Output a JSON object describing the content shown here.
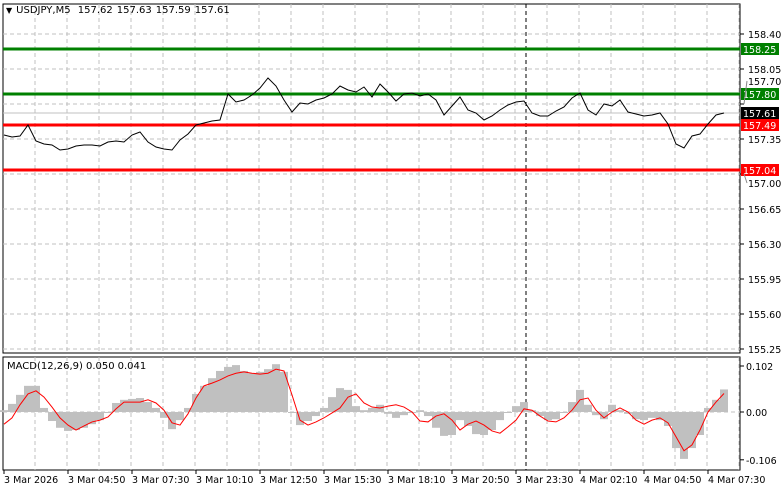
{
  "header": {
    "symbol": "USDJPY,M5",
    "open": "157.62",
    "high": "157.63",
    "low": "157.59",
    "close": "157.61"
  },
  "macd_label": {
    "name": "MACD(12,26,9)",
    "main": "0.050",
    "signal": "0.041"
  },
  "colors": {
    "support": "#ff0000",
    "resistance": "#008000",
    "price_line": "#000000",
    "macd_histogram": "#c0c0c0",
    "signal_line": "#ff0000",
    "grid": "#c0c0c0",
    "current_price_badge": "#000000"
  },
  "chart_data": [
    {
      "type": "line",
      "title": "USDJPY,M5",
      "ylim": [
        155.2,
        158.7
      ],
      "y_ticks": [
        "158.40",
        "158.05",
        "157.70",
        "157.35",
        "157.00",
        "156.65",
        "156.30",
        "155.95",
        "155.60",
        "155.25"
      ],
      "x_ticks": [
        "3 Mar 2026",
        "3 Mar 04:50",
        "3 Mar 07:30",
        "3 Mar 10:10",
        "3 Mar 12:50",
        "3 Mar 15:30",
        "3 Mar 18:10",
        "3 Mar 20:50",
        "3 Mar 23:30",
        "4 Mar 02:10",
        "4 Mar 04:50",
        "4 Mar 07:30"
      ],
      "grid": true,
      "times": [
        "3 Mar 02:10",
        "3 Mar 02:30",
        "3 Mar 02:50",
        "3 Mar 03:10",
        "3 Mar 03:30",
        "3 Mar 03:50",
        "3 Mar 04:10",
        "3 Mar 04:30",
        "3 Mar 04:50",
        "3 Mar 05:10",
        "3 Mar 05:30",
        "3 Mar 05:50",
        "3 Mar 06:10",
        "3 Mar 06:30",
        "3 Mar 06:50",
        "3 Mar 07:10",
        "3 Mar 07:30",
        "3 Mar 07:50",
        "3 Mar 08:10",
        "3 Mar 08:30",
        "3 Mar 08:50",
        "3 Mar 09:10",
        "3 Mar 09:30",
        "3 Mar 09:50",
        "3 Mar 10:10",
        "3 Mar 10:30",
        "3 Mar 10:50",
        "3 Mar 11:10",
        "3 Mar 11:30",
        "3 Mar 11:50",
        "3 Mar 12:10",
        "3 Mar 12:30",
        "3 Mar 12:50",
        "3 Mar 13:10",
        "3 Mar 13:30",
        "3 Mar 13:50",
        "3 Mar 14:10",
        "3 Mar 14:30",
        "3 Mar 14:50",
        "3 Mar 15:10",
        "3 Mar 15:30",
        "3 Mar 15:50",
        "3 Mar 16:10",
        "3 Mar 16:30",
        "3 Mar 16:50",
        "3 Mar 17:10",
        "3 Mar 17:30",
        "3 Mar 17:50",
        "3 Mar 18:10",
        "3 Mar 18:30",
        "3 Mar 18:50",
        "3 Mar 19:10",
        "3 Mar 19:30",
        "3 Mar 19:50",
        "3 Mar 20:10",
        "3 Mar 20:30",
        "3 Mar 20:50",
        "3 Mar 21:10",
        "3 Mar 21:30",
        "3 Mar 21:50",
        "3 Mar 22:10",
        "3 Mar 22:30",
        "3 Mar 22:50",
        "3 Mar 23:10",
        "3 Mar 23:30",
        "3 Mar 23:50",
        "4 Mar 00:10",
        "4 Mar 00:30",
        "4 Mar 00:50",
        "4 Mar 01:10",
        "4 Mar 01:30",
        "4 Mar 01:50",
        "4 Mar 02:10",
        "4 Mar 02:30",
        "4 Mar 02:50",
        "4 Mar 03:10",
        "4 Mar 03:30",
        "4 Mar 03:50",
        "4 Mar 04:10",
        "4 Mar 04:30",
        "4 Mar 04:50",
        "4 Mar 05:10",
        "4 Mar 05:30",
        "4 Mar 05:50",
        "4 Mar 06:10",
        "4 Mar 06:30",
        "4 Mar 06:50",
        "4 Mar 07:10",
        "4 Mar 07:30",
        "4 Mar 07:50",
        "4 Mar 08:10"
      ],
      "close": [
        157.39,
        157.37,
        157.38,
        157.49,
        157.33,
        157.3,
        157.29,
        157.24,
        157.25,
        157.28,
        157.29,
        157.29,
        157.28,
        157.32,
        157.33,
        157.32,
        157.39,
        157.42,
        157.32,
        157.27,
        157.25,
        157.24,
        157.34,
        157.4,
        157.49,
        157.51,
        157.53,
        157.54,
        157.8,
        157.72,
        157.74,
        157.79,
        157.86,
        157.96,
        157.88,
        157.74,
        157.62,
        157.71,
        157.7,
        157.74,
        157.76,
        157.8,
        157.88,
        157.84,
        157.82,
        157.87,
        157.77,
        157.9,
        157.82,
        157.73,
        157.8,
        157.81,
        157.78,
        157.8,
        157.74,
        157.59,
        157.68,
        157.77,
        157.64,
        157.61,
        157.54,
        157.58,
        157.64,
        157.69,
        157.72,
        157.73,
        157.61,
        157.58,
        157.58,
        157.63,
        157.67,
        157.76,
        157.81,
        157.64,
        157.59,
        157.7,
        157.68,
        157.74,
        157.62,
        157.6,
        157.58,
        157.59,
        157.61,
        157.5,
        157.3,
        157.26,
        157.38,
        157.4,
        157.5,
        157.59,
        157.61
      ],
      "current_price": "157.61",
      "day_separator": "3 Mar 23:50",
      "levels": [
        {
          "price": "158.25",
          "kind": "resistance"
        },
        {
          "price": "157.80",
          "kind": "resistance"
        },
        {
          "price": "157.49",
          "kind": "support"
        },
        {
          "price": "157.04",
          "kind": "support"
        }
      ]
    },
    {
      "type": "bar",
      "title": "MACD(12,26,9)",
      "ylim": [
        -0.12,
        0.122
      ],
      "y_ticks": [
        "0.102",
        "0.00",
        "-0.106"
      ],
      "histogram": [
        0.004,
        0.018,
        0.038,
        0.058,
        0.058,
        0.009,
        -0.02,
        -0.035,
        -0.042,
        -0.04,
        -0.035,
        -0.027,
        -0.018,
        0,
        0.02,
        0.027,
        0.029,
        0.031,
        0.022,
        0.009,
        -0.013,
        -0.038,
        -0.018,
        0.009,
        0.04,
        0.058,
        0.075,
        0.091,
        0.1,
        0.104,
        0.091,
        0.086,
        0.089,
        0.095,
        0.106,
        0.089,
        0,
        -0.029,
        -0.02,
        -0.009,
        0.009,
        0.033,
        0.053,
        0.049,
        0.013,
        0.004,
        0.009,
        0.016,
        -0.004,
        -0.013,
        -0.007,
        0,
        0.004,
        -0.009,
        -0.035,
        -0.053,
        -0.051,
        -0.018,
        -0.031,
        -0.049,
        -0.051,
        -0.04,
        -0.018,
        0,
        0.013,
        0.022,
        0.004,
        -0.009,
        -0.018,
        -0.016,
        -0.002,
        0.022,
        0.049,
        0.016,
        -0.007,
        -0.016,
        0.016,
        0.004,
        -0.004,
        -0.016,
        -0.018,
        -0.013,
        -0.018,
        -0.031,
        -0.08,
        -0.104,
        -0.08,
        -0.051,
        0.009,
        0.027,
        0.05
      ],
      "signal": [
        -0.027,
        -0.013,
        0.016,
        0.04,
        0.047,
        0.033,
        0.011,
        -0.013,
        -0.029,
        -0.04,
        -0.031,
        -0.022,
        -0.018,
        -0.011,
        0.007,
        0.022,
        0.022,
        0.022,
        0.027,
        0.02,
        0.004,
        -0.024,
        -0.029,
        -0.004,
        0.031,
        0.058,
        0.064,
        0.071,
        0.08,
        0.086,
        0.089,
        0.086,
        0.084,
        0.086,
        0.095,
        0.091,
        0.038,
        -0.018,
        -0.029,
        -0.022,
        -0.013,
        -0.002,
        0.009,
        0.033,
        0.04,
        0.02,
        0.011,
        0.009,
        0.013,
        0.016,
        0.011,
        0,
        -0.02,
        -0.022,
        -0.009,
        -0.004,
        -0.018,
        -0.04,
        -0.027,
        -0.02,
        -0.029,
        -0.042,
        -0.047,
        -0.033,
        -0.018,
        0.007,
        0.004,
        -0.009,
        -0.02,
        -0.022,
        -0.013,
        0.004,
        0.027,
        0.031,
        0.004,
        -0.013,
        0,
        0.009,
        0,
        -0.018,
        -0.027,
        -0.018,
        -0.013,
        -0.024,
        -0.055,
        -0.086,
        -0.073,
        -0.04,
        0,
        0.022,
        0.041
      ]
    }
  ]
}
